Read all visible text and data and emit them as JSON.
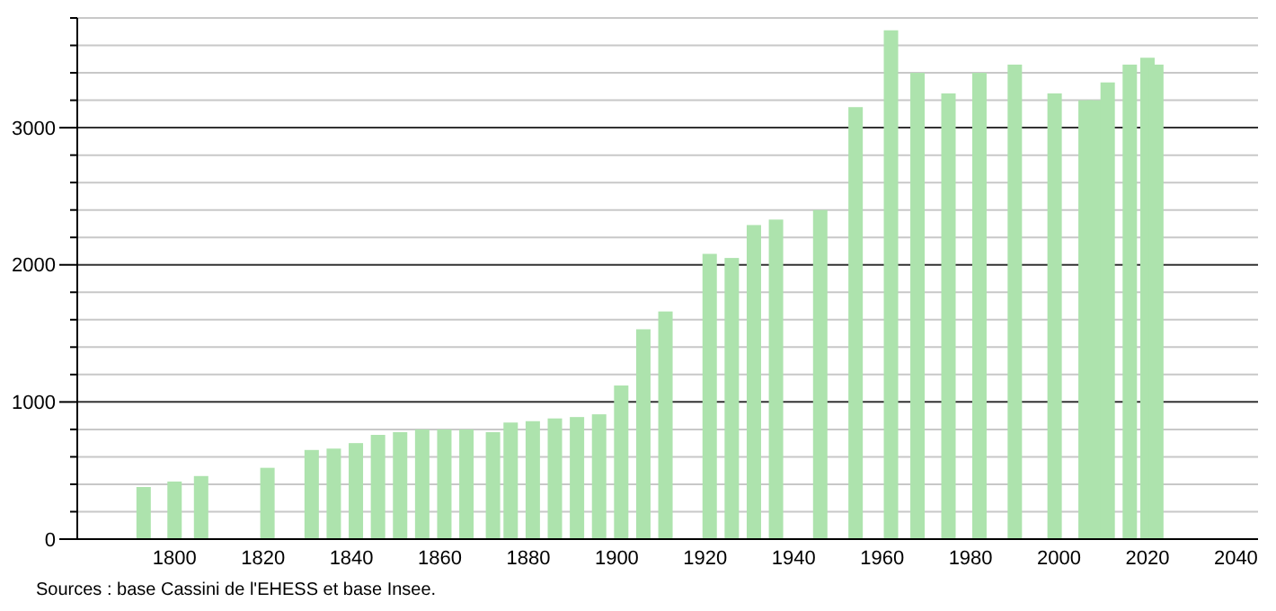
{
  "chart_data": {
    "type": "bar",
    "color": "#ade3ad",
    "x": [
      1793,
      1800,
      1806,
      1821,
      1831,
      1836,
      1841,
      1846,
      1851,
      1856,
      1861,
      1866,
      1872,
      1876,
      1881,
      1886,
      1891,
      1896,
      1901,
      1906,
      1911,
      1921,
      1926,
      1931,
      1936,
      1946,
      1954,
      1962,
      1968,
      1975,
      1982,
      1990,
      1999,
      2006,
      2008,
      2011,
      2016,
      2020,
      2022
    ],
    "values": [
      380,
      420,
      460,
      520,
      650,
      660,
      700,
      760,
      780,
      800,
      800,
      800,
      780,
      850,
      860,
      880,
      890,
      910,
      1120,
      1530,
      1660,
      2080,
      2050,
      2290,
      2330,
      2400,
      3150,
      3710,
      3400,
      3250,
      3400,
      3460,
      3250,
      3200,
      3200,
      3330,
      3460,
      3510,
      3460
    ],
    "xlim": [
      1778,
      2045
    ],
    "xticks": [
      1800,
      1820,
      1840,
      1860,
      1880,
      1900,
      1920,
      1940,
      1960,
      1980,
      2000,
      2020,
      2040
    ],
    "ylim": [
      0,
      3800
    ],
    "yticks": [
      0,
      {
        "value": 200,
        "label": null
      },
      {
        "value": 400,
        "label": null
      },
      {
        "value": 600,
        "label": null
      },
      {
        "value": 800,
        "label": null
      },
      1000,
      {
        "value": 1200,
        "label": null
      },
      {
        "value": 1400,
        "label": null
      },
      {
        "value": 1600,
        "label": null
      },
      {
        "value": 1800,
        "label": null
      },
      2000,
      {
        "value": 2200,
        "label": null
      },
      {
        "value": 2400,
        "label": null
      },
      {
        "value": 2600,
        "label": null
      },
      {
        "value": 2800,
        "label": null
      },
      3000,
      {
        "value": 3200,
        "label": null
      },
      {
        "value": 3400,
        "label": null
      },
      {
        "value": 3600,
        "label": null
      },
      {
        "value": 3800,
        "label": null
      }
    ],
    "grid": true,
    "annotations": [
      "Sources : base Cassini de l'EHESS et base Insee."
    ]
  }
}
